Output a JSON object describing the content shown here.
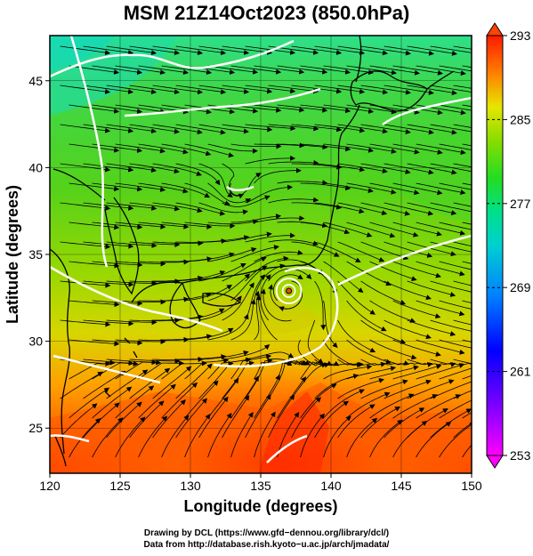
{
  "title": "MSM 21Z14Oct2023 (850.0hPa)",
  "x_axis": {
    "label": "Longitude (degrees)",
    "range": [
      120,
      150
    ],
    "ticks": [
      120,
      125,
      130,
      135,
      140,
      145,
      150
    ],
    "tick_labels": [
      "120",
      "125",
      "130",
      "135",
      "140",
      "145",
      "150"
    ]
  },
  "y_axis": {
    "label": "Latitude  (degrees)",
    "range": [
      22.4,
      47.6
    ],
    "ticks": [
      25,
      30,
      35,
      40,
      45
    ],
    "tick_labels": [
      "25",
      "30",
      "35",
      "40",
      "45"
    ]
  },
  "colorbar": {
    "range": [
      253,
      293
    ],
    "ticks": [
      253,
      261,
      269,
      277,
      285,
      293
    ],
    "tick_labels": [
      "253",
      "261",
      "269",
      "277",
      "285",
      "293"
    ]
  },
  "map": {
    "grid": true,
    "low_center": {
      "lon": 137.0,
      "lat": 32.9
    },
    "colors": {
      "cold": "#ff00ff",
      "blue": "#0000ff",
      "cyan": "#00e6e6",
      "green": "#33cc00",
      "yellow": "#ffff00",
      "orange": "#ff8000",
      "red": "#ff0000"
    }
  },
  "credits": {
    "line1": "Drawing by DCL (https://www.gfd−dennou.org/library/dcl/)",
    "line2": "Data from http://database.rish.kyoto−u.ac.jp/arch/jmadata/"
  }
}
